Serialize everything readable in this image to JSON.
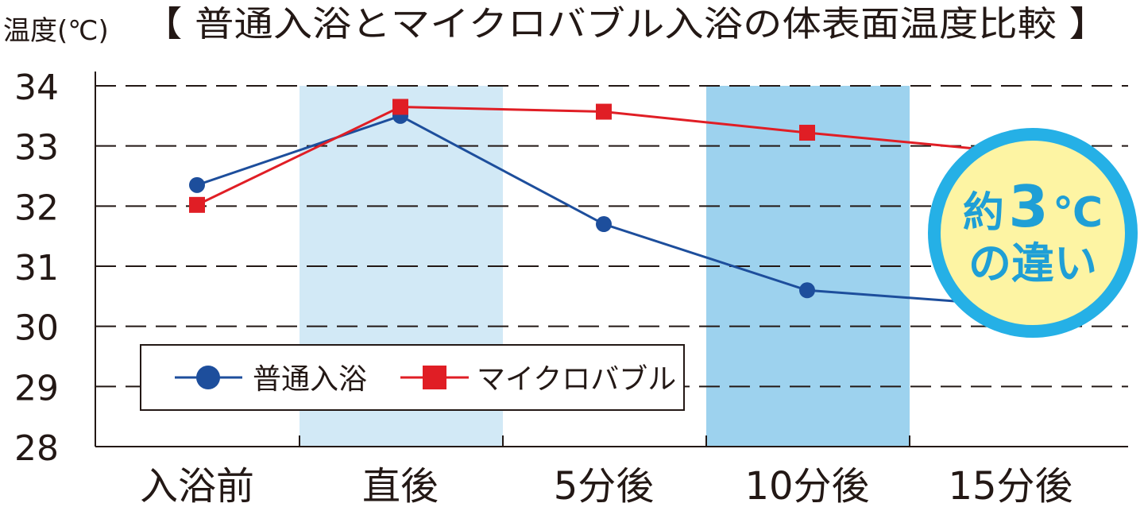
{
  "chart_data": {
    "type": "line",
    "title": "【 普通入浴とマイクロバブル入浴の体表面温度比較 】",
    "ylabel": "温度(℃)",
    "xlabel": "",
    "categories": [
      "入浴前",
      "直後",
      "5分後",
      "10分後",
      "15分後"
    ],
    "ylim": [
      28,
      34
    ],
    "yticks": [
      28,
      29,
      30,
      31,
      32,
      33,
      34
    ],
    "grid": "horizontal dashed",
    "legend_position": "bottom-left",
    "series": [
      {
        "name": "普通入浴",
        "marker": "circle",
        "color": "#1d4e9c",
        "values": [
          32.35,
          33.5,
          31.7,
          30.6,
          30.35
        ]
      },
      {
        "name": "マイクロバブル",
        "marker": "square",
        "color": "#e01e25",
        "values": [
          32.02,
          33.65,
          33.57,
          33.22,
          32.9
        ]
      }
    ],
    "shaded_bands": [
      {
        "category_index": 1,
        "color": "#d2e9f6"
      },
      {
        "category_index": 3,
        "color": "#9dd2ee"
      }
    ],
    "annotation": {
      "line1_prefix": "約",
      "line1_number": "3",
      "line1_unit": "℃",
      "line2": "の違い",
      "fill": "#fdf4a3",
      "ring": "#25b0e6",
      "text_color": "#1f9fd6"
    }
  }
}
